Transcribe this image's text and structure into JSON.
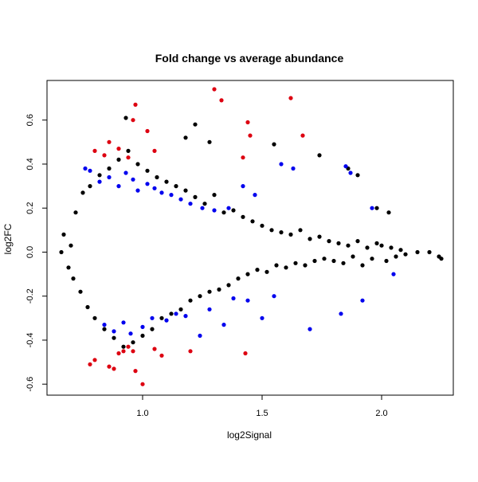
{
  "chart_data": {
    "type": "scatter",
    "title": "Fold change vs average abundance",
    "xlabel": "log2Signal",
    "ylabel": "log2FC",
    "xlim": [
      0.6,
      2.3
    ],
    "ylim": [
      -0.65,
      0.78
    ],
    "x_ticks": [
      1.0,
      1.5,
      2.0
    ],
    "x_tick_labels": [
      "1.0",
      "1.5",
      "2.0"
    ],
    "y_ticks": [
      -0.6,
      -0.4,
      -0.2,
      0.0,
      0.2,
      0.4,
      0.6
    ],
    "y_tick_labels": [
      "-0.6",
      "-0.4",
      "-0.2",
      "0.0",
      "0.2",
      "0.4",
      "0.6"
    ],
    "grid": false,
    "legend": "none",
    "colors": {
      "all_points": "#000000",
      "highlight_blue": "#0000ee",
      "highlight_red": "#dd0011"
    },
    "series": [
      {
        "color": "#000000",
        "x": [
          0.66,
          0.67,
          0.69,
          0.7,
          0.71,
          0.72,
          0.74,
          0.75,
          0.77,
          0.78,
          0.8,
          0.82,
          0.84,
          0.86,
          0.88,
          0.9,
          0.92,
          0.94,
          0.96,
          0.98,
          1.0,
          1.02,
          1.04,
          1.06,
          1.08,
          1.1,
          1.12,
          1.14,
          1.16,
          1.18,
          1.2,
          1.22,
          1.24,
          1.26,
          1.28,
          1.3,
          1.32,
          1.34,
          1.36,
          1.38,
          1.4,
          1.42,
          1.44,
          1.46,
          1.48,
          1.5,
          1.52,
          1.54,
          1.56,
          1.58,
          1.6,
          1.62,
          1.64,
          1.66,
          1.68,
          1.7,
          1.72,
          1.74,
          1.76,
          1.78,
          1.8,
          1.82,
          1.84,
          1.86,
          1.88,
          1.9,
          1.92,
          1.94,
          1.96,
          1.98,
          2.0,
          2.02,
          2.04,
          2.06,
          2.08,
          2.1,
          2.15,
          2.2,
          2.24,
          2.25,
          0.93,
          1.22,
          1.28,
          1.18,
          1.55,
          1.74,
          1.86,
          1.98,
          2.03,
          1.9
        ],
        "y": [
          0.0,
          0.08,
          -0.07,
          0.03,
          -0.12,
          0.18,
          -0.18,
          0.27,
          -0.25,
          0.3,
          -0.3,
          0.35,
          -0.35,
          0.38,
          -0.39,
          0.42,
          -0.43,
          0.46,
          -0.41,
          0.4,
          -0.38,
          0.37,
          -0.35,
          0.34,
          -0.3,
          0.32,
          -0.28,
          0.3,
          -0.26,
          0.28,
          -0.22,
          0.25,
          -0.2,
          0.22,
          -0.18,
          0.26,
          -0.17,
          0.18,
          -0.15,
          0.19,
          -0.12,
          0.16,
          -0.1,
          0.14,
          -0.08,
          0.12,
          -0.09,
          0.1,
          -0.06,
          0.09,
          -0.07,
          0.08,
          -0.05,
          0.1,
          -0.06,
          0.06,
          -0.04,
          0.07,
          -0.03,
          0.05,
          -0.04,
          0.04,
          -0.05,
          0.03,
          -0.02,
          0.05,
          -0.06,
          0.02,
          -0.03,
          0.04,
          0.03,
          -0.04,
          0.02,
          -0.02,
          0.01,
          -0.01,
          0.0,
          0.0,
          -0.02,
          -0.03,
          0.61,
          0.58,
          0.5,
          0.52,
          0.49,
          0.44,
          0.38,
          0.2,
          0.18,
          0.35
        ]
      },
      {
        "color": "#0000ee",
        "x": [
          0.76,
          0.78,
          0.82,
          0.86,
          0.9,
          0.93,
          0.96,
          0.98,
          1.02,
          1.05,
          1.08,
          1.12,
          1.16,
          1.2,
          1.25,
          1.3,
          1.36,
          1.42,
          1.47,
          1.58,
          1.63,
          1.85,
          1.87,
          1.96,
          0.84,
          0.88,
          0.92,
          0.95,
          1.0,
          1.04,
          1.1,
          1.14,
          1.18,
          1.24,
          1.28,
          1.34,
          1.38,
          1.44,
          1.5,
          1.55,
          1.7,
          1.83,
          1.92,
          2.05
        ],
        "y": [
          0.38,
          0.37,
          0.32,
          0.34,
          0.3,
          0.36,
          0.33,
          0.28,
          0.31,
          0.29,
          0.27,
          0.26,
          0.24,
          0.22,
          0.2,
          0.19,
          0.2,
          0.3,
          0.26,
          0.4,
          0.38,
          0.39,
          0.36,
          0.2,
          -0.33,
          -0.36,
          -0.32,
          -0.37,
          -0.34,
          -0.3,
          -0.31,
          -0.28,
          -0.29,
          -0.38,
          -0.26,
          -0.33,
          -0.21,
          -0.22,
          -0.3,
          -0.2,
          -0.35,
          -0.28,
          -0.22,
          -0.1
        ]
      },
      {
        "color": "#dd0011",
        "x": [
          0.8,
          0.84,
          0.86,
          0.9,
          0.94,
          0.96,
          0.97,
          1.02,
          1.05,
          1.3,
          1.33,
          1.42,
          1.44,
          1.45,
          1.62,
          1.67,
          0.78,
          0.8,
          0.86,
          0.88,
          0.9,
          0.92,
          0.94,
          0.96,
          0.97,
          1.0,
          1.05,
          1.08,
          1.2,
          1.43
        ],
        "y": [
          0.46,
          0.44,
          0.5,
          0.47,
          0.43,
          0.6,
          0.67,
          0.55,
          0.46,
          0.74,
          0.69,
          0.43,
          0.59,
          0.53,
          0.7,
          0.53,
          -0.51,
          -0.49,
          -0.52,
          -0.53,
          -0.46,
          -0.45,
          -0.43,
          -0.45,
          -0.54,
          -0.6,
          -0.44,
          -0.47,
          -0.45,
          -0.46
        ]
      }
    ]
  }
}
